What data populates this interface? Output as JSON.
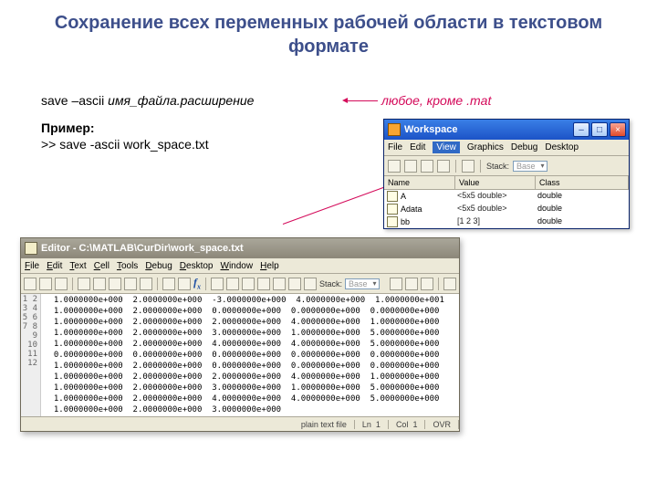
{
  "title": "Сохранение всех переменных рабочей области в текстовом формате",
  "syntax_plain": "save –ascii ",
  "syntax_italic": "имя_файла.расширение",
  "example_label": "Пример:",
  "example_cmd": ">> save -ascii work_space.txt",
  "annot": "любое, кроме .mat",
  "workspace": {
    "title": "Workspace",
    "menu": [
      "File",
      "Edit",
      "View",
      "Graphics",
      "Debug",
      "Desktop"
    ],
    "menu_hi": 2,
    "stack_label": "Stack:",
    "stack_value": "Base",
    "cols": [
      "Name",
      "Value",
      "Class"
    ],
    "rows": [
      {
        "name": "A",
        "value": "<5x5 double>",
        "class": "double"
      },
      {
        "name": "Adata",
        "value": "<5x5 double>",
        "class": "double"
      },
      {
        "name": "bb",
        "value": "[1 2 3]",
        "class": "double"
      }
    ]
  },
  "editor": {
    "title": "Editor - C:\\MATLAB\\CurDir\\work_space.txt",
    "menu": [
      "File",
      "Edit",
      "Text",
      "Cell",
      "Tools",
      "Debug",
      "Desktop",
      "Window",
      "Help"
    ],
    "stack_label": "Stack:",
    "stack_value": "Base",
    "rows": [
      [
        "1.0000000e+000",
        "2.0000000e+000",
        "-3.0000000e+000",
        "4.0000000e+000",
        "1.0000000e+001"
      ],
      [
        "1.0000000e+000",
        "2.0000000e+000",
        "0.0000000e+000",
        "0.0000000e+000",
        "0.0000000e+000"
      ],
      [
        "1.0000000e+000",
        "2.0000000e+000",
        "2.0000000e+000",
        "4.0000000e+000",
        "1.0000000e+000"
      ],
      [
        "1.0000000e+000",
        "2.0000000e+000",
        "3.0000000e+000",
        "1.0000000e+000",
        "5.0000000e+000"
      ],
      [
        "1.0000000e+000",
        "2.0000000e+000",
        "4.0000000e+000",
        "4.0000000e+000",
        "5.0000000e+000"
      ],
      [
        "0.0000000e+000",
        "0.0000000e+000",
        "0.0000000e+000",
        "0.0000000e+000",
        "0.0000000e+000"
      ],
      [
        "1.0000000e+000",
        "2.0000000e+000",
        "0.0000000e+000",
        "0.0000000e+000",
        "0.0000000e+000"
      ],
      [
        "1.0000000e+000",
        "2.0000000e+000",
        "2.0000000e+000",
        "4.0000000e+000",
        "1.0000000e+000"
      ],
      [
        "1.0000000e+000",
        "2.0000000e+000",
        "3.0000000e+000",
        "1.0000000e+000",
        "5.0000000e+000"
      ],
      [
        "1.0000000e+000",
        "2.0000000e+000",
        "4.0000000e+000",
        "4.0000000e+000",
        "5.0000000e+000"
      ],
      [
        "1.0000000e+000",
        "2.0000000e+000",
        "3.0000000e+000",
        "",
        ""
      ]
    ],
    "status": {
      "filetype": "plain text file",
      "ln_label": "Ln",
      "ln": "1",
      "col_label": "Col",
      "col": "1",
      "ovr": "OVR"
    }
  }
}
